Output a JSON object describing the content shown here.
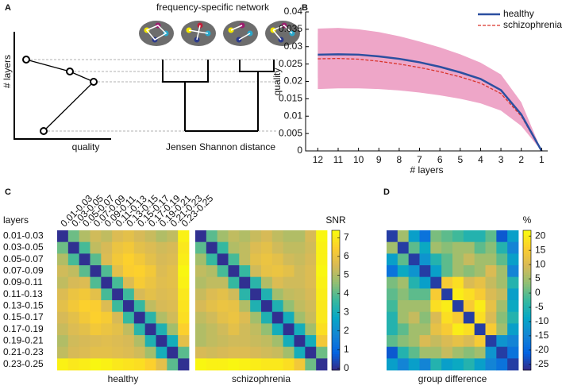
{
  "diagram": {
    "panel_label": "A",
    "title": "frequency-specific network",
    "y_axis_label": "# layers",
    "x_axis_label": "quality",
    "dendrogram_label": "Jensen Shannon distance"
  },
  "chart_data": [
    {
      "type": "line",
      "panel_label": "B",
      "xlabel": "# layers",
      "ylabel": "quality",
      "x": [
        12,
        11,
        10,
        9,
        8,
        7,
        6,
        5,
        4,
        3,
        2,
        1
      ],
      "xlim": [
        12.6,
        0.7
      ],
      "xticks": [
        12,
        11,
        10,
        9,
        8,
        7,
        6,
        5,
        4,
        3,
        2,
        1
      ],
      "ylim": [
        0,
        0.04
      ],
      "yticks": [
        0,
        0.005,
        0.01,
        0.015,
        0.02,
        0.025,
        0.03,
        0.035,
        0.04
      ],
      "legend": "upper right",
      "series": [
        {
          "name": "healthy",
          "color": "#2b4fa0",
          "band_color": "#a9d9ef",
          "dash": "solid",
          "values": [
            0.0277,
            0.0278,
            0.0277,
            0.0272,
            0.0265,
            0.0255,
            0.0242,
            0.0226,
            0.0207,
            0.0175,
            0.0105,
            0
          ],
          "band_upper": [
            0.0338,
            0.034,
            0.0338,
            0.0332,
            0.0322,
            0.0308,
            0.0292,
            0.0272,
            0.0248,
            0.0215,
            0.0135,
            0
          ],
          "band_lower": [
            0.021,
            0.0212,
            0.0212,
            0.0208,
            0.0203,
            0.0196,
            0.0187,
            0.0175,
            0.016,
            0.0135,
            0.008,
            0
          ]
        },
        {
          "name": "schizophrenia",
          "color": "#d9342b",
          "band_color": "#eea6c8",
          "dash": "dashed",
          "values": [
            0.0265,
            0.0266,
            0.0264,
            0.0258,
            0.025,
            0.024,
            0.0228,
            0.0213,
            0.0195,
            0.0165,
            0.01,
            0
          ],
          "band_upper": [
            0.0352,
            0.0354,
            0.035,
            0.0342,
            0.033,
            0.0315,
            0.0298,
            0.0278,
            0.0254,
            0.022,
            0.014,
            0
          ],
          "band_lower": [
            0.0178,
            0.018,
            0.018,
            0.0178,
            0.0174,
            0.0168,
            0.016,
            0.015,
            0.0137,
            0.0116,
            0.0072,
            0
          ]
        }
      ]
    },
    {
      "type": "heatmap",
      "panel_label": "C",
      "row_axis_title": "layers",
      "xlabel": "healthy",
      "categories": [
        "0.01-0.03",
        "0.03-0.05",
        "0.05-0.07",
        "0.07-0.09",
        "0.09-0.11",
        "0.11-0.13",
        "0.13-0.15",
        "0.15-0.17",
        "0.17-0.19",
        "0.19-0.21",
        "0.21-0.23",
        "0.23-0.25"
      ],
      "values": [
        [
          0,
          4.2,
          5.0,
          5.4,
          5.2,
          5.6,
          5.8,
          5.5,
          5.3,
          5.0,
          5.2,
          7.2
        ],
        [
          4.2,
          0,
          3.8,
          5.2,
          5.5,
          6.0,
          6.2,
          5.8,
          5.6,
          5.4,
          5.5,
          7.0
        ],
        [
          5.0,
          3.8,
          0,
          4.0,
          5.6,
          6.2,
          6.5,
          6.2,
          5.8,
          5.5,
          5.6,
          7.1
        ],
        [
          5.4,
          5.2,
          4.0,
          0,
          3.9,
          5.8,
          6.4,
          6.5,
          6.2,
          5.6,
          5.8,
          7.3
        ],
        [
          5.2,
          5.5,
          5.6,
          3.9,
          0,
          3.8,
          5.6,
          6.3,
          6.0,
          5.7,
          5.8,
          7.2
        ],
        [
          5.6,
          6.0,
          6.2,
          5.8,
          3.8,
          0,
          3.7,
          5.5,
          5.8,
          5.6,
          5.7,
          7.0
        ],
        [
          5.8,
          6.2,
          6.5,
          6.4,
          5.6,
          3.7,
          0,
          3.6,
          5.2,
          5.5,
          5.6,
          6.9
        ],
        [
          5.5,
          5.8,
          6.2,
          6.5,
          6.3,
          5.5,
          3.6,
          0,
          3.4,
          5.0,
          5.4,
          6.8
        ],
        [
          5.3,
          5.6,
          5.8,
          6.2,
          6.0,
          5.8,
          5.2,
          3.4,
          0,
          3.2,
          4.8,
          6.5
        ],
        [
          5.0,
          5.4,
          5.5,
          5.6,
          5.7,
          5.6,
          5.5,
          5.0,
          3.2,
          0,
          3.0,
          5.8
        ],
        [
          5.2,
          5.5,
          5.6,
          5.8,
          5.8,
          5.7,
          5.6,
          5.4,
          4.8,
          3.0,
          0,
          4.0
        ],
        [
          7.2,
          7.0,
          7.1,
          7.3,
          7.2,
          7.0,
          6.9,
          6.8,
          6.5,
          5.8,
          4.0,
          0
        ]
      ]
    },
    {
      "type": "heatmap",
      "xlabel": "schizophrenia",
      "values": [
        [
          0,
          4.0,
          4.8,
          5.2,
          5.0,
          5.3,
          5.5,
          5.2,
          5.0,
          5.0,
          5.5,
          7.3
        ],
        [
          4.0,
          0,
          3.6,
          5.0,
          5.2,
          5.6,
          5.8,
          5.4,
          5.2,
          5.2,
          5.4,
          7.2
        ],
        [
          4.8,
          3.6,
          0,
          3.8,
          5.2,
          5.8,
          6.0,
          5.8,
          5.4,
          5.3,
          5.5,
          7.2
        ],
        [
          5.2,
          5.0,
          3.8,
          0,
          3.6,
          5.4,
          5.9,
          6.0,
          5.8,
          5.4,
          5.6,
          7.3
        ],
        [
          5.0,
          5.2,
          5.2,
          3.6,
          0,
          3.4,
          5.0,
          5.6,
          5.4,
          5.4,
          5.6,
          7.2
        ],
        [
          5.3,
          5.6,
          5.8,
          5.4,
          3.4,
          0,
          3.2,
          4.8,
          5.2,
          5.3,
          5.5,
          7.1
        ],
        [
          5.5,
          5.8,
          6.0,
          5.9,
          5.0,
          3.2,
          0,
          3.2,
          4.6,
          5.2,
          5.4,
          7.0
        ],
        [
          5.2,
          5.4,
          5.8,
          6.0,
          5.6,
          4.8,
          3.2,
          0,
          3.0,
          4.8,
          5.3,
          7.0
        ],
        [
          5.0,
          5.2,
          5.4,
          5.8,
          5.4,
          5.2,
          4.6,
          3.0,
          0,
          3.0,
          4.8,
          6.8
        ],
        [
          5.0,
          5.2,
          5.3,
          5.4,
          5.4,
          5.3,
          5.2,
          4.8,
          3.0,
          0,
          3.0,
          6.2
        ],
        [
          5.5,
          5.4,
          5.5,
          5.6,
          5.6,
          5.5,
          5.4,
          5.3,
          4.8,
          3.0,
          0,
          4.2
        ],
        [
          7.3,
          7.2,
          7.2,
          7.3,
          7.2,
          7.1,
          7.0,
          7.0,
          6.8,
          6.2,
          4.2,
          0
        ]
      ],
      "colorbar": {
        "title": "SNR",
        "lim": [
          -0.1,
          7.4
        ],
        "ticks": [
          0,
          1,
          2,
          3,
          4,
          5,
          6,
          7
        ]
      }
    },
    {
      "type": "heatmap",
      "panel_label": "D",
      "xlabel": "group difference",
      "values": [
        [
          -25,
          5,
          -10,
          -18,
          2,
          0,
          -2,
          -5,
          -5,
          0,
          -22,
          -10
        ],
        [
          5,
          -25,
          0,
          -8,
          5,
          3,
          5,
          5,
          0,
          3,
          -5,
          -15
        ],
        [
          -10,
          0,
          -25,
          -12,
          -5,
          0,
          5,
          8,
          5,
          5,
          0,
          -10
        ],
        [
          -18,
          -8,
          -12,
          -25,
          -10,
          0,
          5,
          3,
          5,
          10,
          5,
          -15
        ],
        [
          2,
          5,
          -5,
          -10,
          -25,
          15,
          18,
          10,
          12,
          8,
          5,
          -5
        ],
        [
          0,
          3,
          0,
          0,
          15,
          -25,
          20,
          18,
          15,
          10,
          8,
          -10
        ],
        [
          -2,
          5,
          5,
          5,
          18,
          20,
          -25,
          15,
          20,
          12,
          5,
          -8
        ],
        [
          -5,
          5,
          8,
          3,
          10,
          18,
          15,
          -25,
          18,
          10,
          3,
          -5
        ],
        [
          -5,
          0,
          5,
          5,
          12,
          15,
          20,
          18,
          -25,
          15,
          5,
          -10
        ],
        [
          0,
          3,
          5,
          10,
          8,
          10,
          12,
          10,
          15,
          -25,
          -12,
          -15
        ],
        [
          -22,
          -5,
          0,
          5,
          5,
          8,
          5,
          3,
          5,
          -12,
          -25,
          -18
        ],
        [
          -10,
          -15,
          -10,
          -15,
          -5,
          -10,
          -8,
          -5,
          -10,
          -15,
          -18,
          -25
        ]
      ],
      "colorbar": {
        "title": "%",
        "lim": [
          -27,
          22
        ],
        "ticks": [
          20,
          15,
          10,
          5,
          0,
          -5,
          -10,
          -15,
          -20,
          -25
        ]
      }
    }
  ],
  "colormap": [
    "#352a87",
    "#0363e1",
    "#1485d4",
    "#06a7c6",
    "#38b99e",
    "#92bf73",
    "#d9ba56",
    "#fcce2e",
    "#f9fb0e"
  ]
}
